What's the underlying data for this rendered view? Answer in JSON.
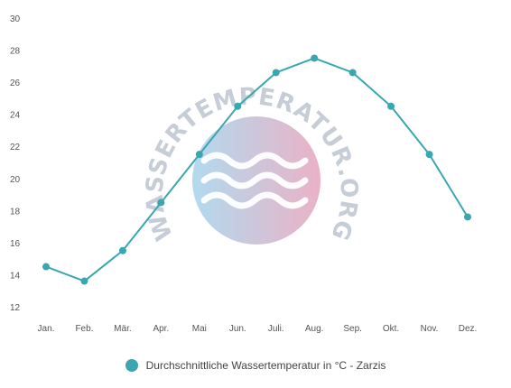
{
  "chart_data": {
    "type": "line",
    "categories": [
      "Jan.",
      "Feb.",
      "Mär.",
      "Apr.",
      "Mai",
      "Jun.",
      "Juli.",
      "Aug.",
      "Sep.",
      "Okt.",
      "Nov.",
      "Dez."
    ],
    "series": [
      {
        "name": "Durchschnittliche Wassertemperatur in °C - Zarzis",
        "values": [
          14.5,
          13.6,
          15.5,
          18.5,
          21.5,
          24.5,
          26.6,
          27.5,
          26.6,
          24.5,
          21.5,
          17.6
        ],
        "color": "#3aa7b0"
      }
    ],
    "yticks": [
      "12",
      "14",
      "16",
      "18",
      "20",
      "22",
      "24",
      "26",
      "28",
      "30"
    ],
    "ylim": [
      12,
      30
    ],
    "grid": false,
    "legend_position": "bottom"
  },
  "watermark": {
    "text": "WASSERTEMPERATUR.ORG",
    "colors": [
      "#a9d6ec",
      "#e8a9c0"
    ]
  }
}
